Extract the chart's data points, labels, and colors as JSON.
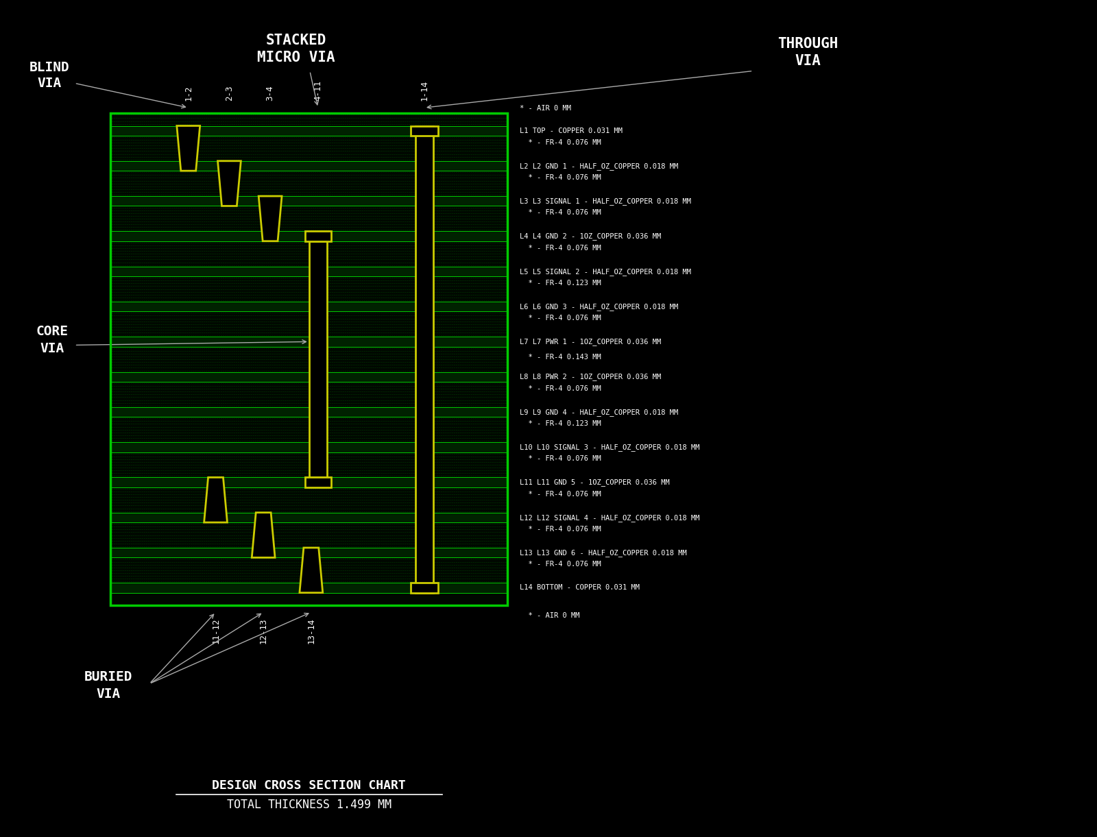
{
  "bg_color": "#000000",
  "board_edge_color": "#00cc00",
  "copper_line_color": "#00cc00",
  "fr4_dot_color": "#00aa00",
  "fr4_bg_color": "#001100",
  "copper_bg_color": "#003300",
  "via_color": "#cccc00",
  "text_color": "#ffffff",
  "ann_color": "#aaaaaa",
  "title1": "DESIGN CROSS SECTION CHART",
  "title2": "TOTAL THICKNESS 1.499 MM",
  "layer_info": [
    [
      "* - AIR 0 MM",
      "L1 TOP - COPPER 0.031 MM",
      "  * - FR-4 0.076 MM"
    ],
    [
      "L2 L2 GND 1 - HALF_OZ_COPPER 0.018 MM",
      "  * - FR-4 0.076 MM"
    ],
    [
      "L3 L3 SIGNAL 1 - HALF_OZ_COPPER 0.018 MM",
      "  * - FR-4 0.076 MM"
    ],
    [
      "L4 L4 GND 2 - 1OZ_COPPER 0.036 MM",
      "  * - FR-4 0.076 MM"
    ],
    [
      "L5 L5 SIGNAL 2 - HALF_OZ_COPPER 0.018 MM",
      "  * - FR-4 0.123 MM"
    ],
    [
      "L6 L6 GND 3 - HALF_OZ_COPPER 0.018 MM",
      "  * - FR-4 0.076 MM"
    ],
    [
      "L7 L7 PWR 1 - 1OZ_COPPER 0.036 MM",
      "  * - FR-4 0.143 MM"
    ],
    [
      "L8 L8 PWR 2 - 1OZ_COPPER 0.036 MM",
      "  * - FR-4 0.076 MM"
    ],
    [
      "L9 L9 GND 4 - HALF_OZ_COPPER 0.018 MM",
      "  * - FR-4 0.123 MM"
    ],
    [
      "L10 L10 SIGNAL 3 - HALF_OZ_COPPER 0.018 MM",
      "  * - FR-4 0.076 MM"
    ],
    [
      "L11 L11 GND 5 - 1OZ_COPPER 0.036 MM",
      "  * - FR-4 0.076 MM"
    ],
    [
      "L12 L12 SIGNAL 4 - HALF_OZ_COPPER 0.018 MM",
      "  * - FR-4 0.076 MM"
    ],
    [
      "L13 L13 GND 6 - HALF_OZ_COPPER 0.018 MM",
      "  * - FR-4 0.076 MM"
    ],
    [
      "L14 BOTTOM - COPPER 0.031 MM",
      "  * - AIR 0 MM"
    ]
  ]
}
